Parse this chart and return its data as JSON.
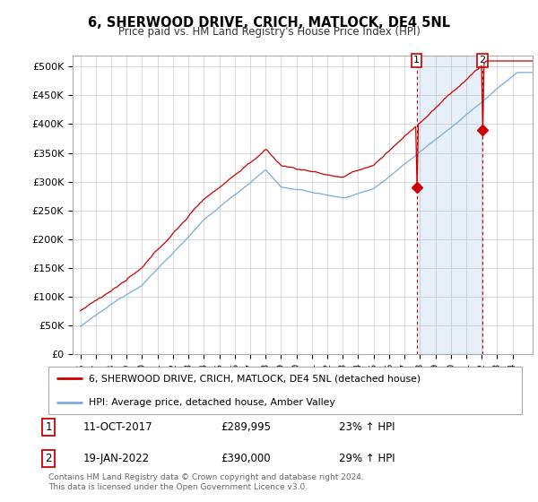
{
  "title": "6, SHERWOOD DRIVE, CRICH, MATLOCK, DE4 5NL",
  "subtitle": "Price paid vs. HM Land Registry's House Price Index (HPI)",
  "ylabel_ticks": [
    "£0",
    "£50K",
    "£100K",
    "£150K",
    "£200K",
    "£250K",
    "£300K",
    "£350K",
    "£400K",
    "£450K",
    "£500K"
  ],
  "ytick_vals": [
    0,
    50000,
    100000,
    150000,
    200000,
    250000,
    300000,
    350000,
    400000,
    450000,
    500000
  ],
  "ylim": [
    0,
    520000
  ],
  "xlim_start": 1995.5,
  "xlim_end": 2025.3,
  "sale1_date": 2017.78,
  "sale1_price": 289995,
  "sale2_date": 2022.05,
  "sale2_price": 390000,
  "legend_house": "6, SHERWOOD DRIVE, CRICH, MATLOCK, DE4 5NL (detached house)",
  "legend_hpi": "HPI: Average price, detached house, Amber Valley",
  "footer": "Contains HM Land Registry data © Crown copyright and database right 2024.\nThis data is licensed under the Open Government Licence v3.0.",
  "house_color": "#cc0000",
  "hpi_color": "#7aaadd",
  "vline_color": "#cc0000",
  "plot_bg": "#ffffff",
  "grid_color": "#cccccc",
  "xtick_years": [
    1996,
    1997,
    1998,
    1999,
    2000,
    2001,
    2002,
    2003,
    2004,
    2005,
    2006,
    2007,
    2008,
    2009,
    2010,
    2011,
    2012,
    2013,
    2014,
    2015,
    2016,
    2017,
    2018,
    2019,
    2020,
    2021,
    2022,
    2023,
    2024
  ]
}
